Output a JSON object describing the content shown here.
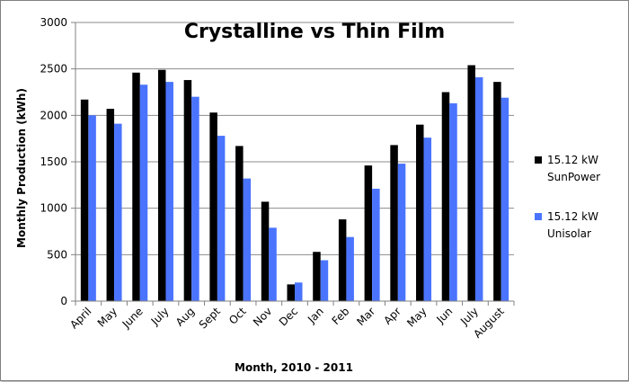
{
  "chart_data": {
    "type": "bar",
    "title": "Crystalline vs Thin Film",
    "xlabel": "Month, 2010 - 2011",
    "ylabel": "Monthly Production (kWh)",
    "ylim": [
      0,
      3000
    ],
    "yticks": [
      0,
      500,
      1000,
      1500,
      2000,
      2500,
      3000
    ],
    "grid": true,
    "legend_position": "right",
    "categories": [
      "April",
      "May",
      "June",
      "July",
      "Aug",
      "Sept",
      "Oct",
      "Nov",
      "Dec",
      "Jan",
      "Feb",
      "Mar",
      "Apr",
      "May",
      "Jun",
      "July",
      "August"
    ],
    "series": [
      {
        "name_lines": [
          "15.12 kW",
          "SunPower"
        ],
        "color": "#000000",
        "values": [
          2170,
          2070,
          2460,
          2490,
          2380,
          2030,
          1670,
          1070,
          180,
          530,
          880,
          1460,
          1680,
          1900,
          2250,
          2540,
          2360
        ]
      },
      {
        "name_lines": [
          "15.12 kW",
          "Unisolar"
        ],
        "color": "#4a74ff",
        "values": [
          2000,
          1910,
          2330,
          2360,
          2200,
          1780,
          1320,
          790,
          200,
          440,
          690,
          1210,
          1480,
          1760,
          2130,
          2410,
          2190
        ]
      }
    ]
  }
}
